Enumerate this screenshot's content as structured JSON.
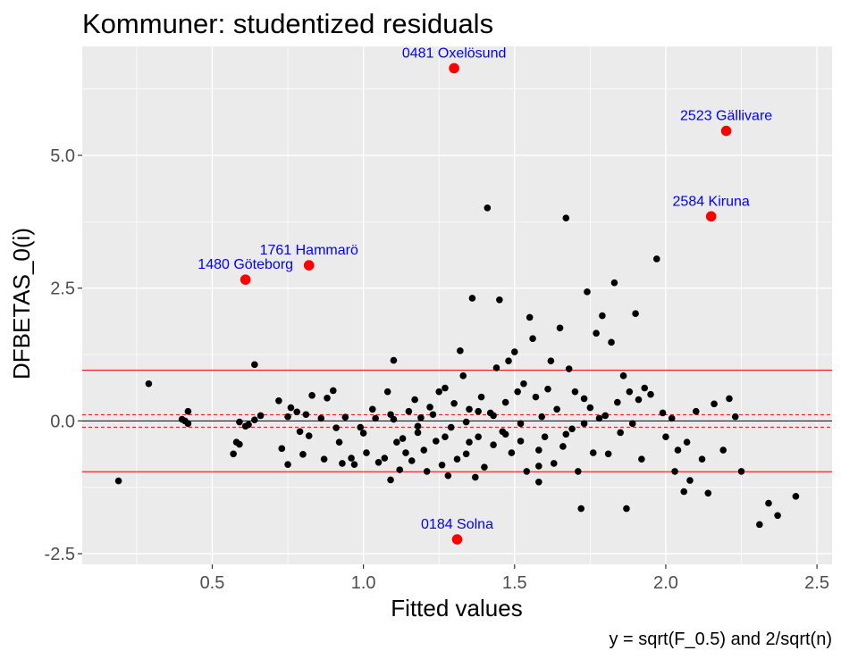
{
  "chart_data": {
    "type": "scatter",
    "title": "Kommuner: studentized residuals",
    "xlabel": "Fitted values",
    "ylabel": "DFBETAS_0(i)",
    "caption": "y = sqrt(F_0.5) and 2/sqrt(n)",
    "xlim": [
      0.07,
      2.55
    ],
    "ylim": [
      -2.7,
      7.05
    ],
    "x_ticks": [
      0.5,
      1.0,
      1.5,
      2.0,
      2.5
    ],
    "x_tick_labels": [
      "0.5",
      "1.0",
      "1.5",
      "2.0",
      "2.5"
    ],
    "y_ticks": [
      -2.5,
      0.0,
      2.5,
      5.0
    ],
    "y_tick_labels": [
      "-2.5",
      "0.0",
      "2.5",
      "5.0"
    ],
    "grid": true,
    "colors": {
      "panel_background": "#ebebeb",
      "grid_line": "#ffffff",
      "point": "#000000",
      "highlight_point": "#ff0000",
      "highlight_label": "#0000ff",
      "reference_line": "#ff0000",
      "zero_line": "#000000"
    },
    "reference_lines": [
      {
        "y": 0.0,
        "color": "#000000",
        "style": "solid"
      },
      {
        "y": 0.955,
        "color": "#ff0000",
        "style": "solid"
      },
      {
        "y": -0.955,
        "color": "#ff0000",
        "style": "solid"
      },
      {
        "y": 0.118,
        "color": "#ff0000",
        "style": "dashed"
      },
      {
        "y": -0.118,
        "color": "#ff0000",
        "style": "dashed"
      }
    ],
    "highlighted": [
      {
        "label": "0481 Oxelösund",
        "x": 1.3,
        "y": 6.64
      },
      {
        "label": "2523 Gällivare",
        "x": 2.2,
        "y": 5.46
      },
      {
        "label": "2584 Kiruna",
        "x": 2.15,
        "y": 3.85
      },
      {
        "label": "1761 Hammarö",
        "x": 0.82,
        "y": 2.93
      },
      {
        "label": "1480 Göteborg",
        "x": 0.61,
        "y": 2.66
      },
      {
        "label": "0184 Solna",
        "x": 1.31,
        "y": -2.23
      }
    ],
    "points": [
      [
        0.19,
        -1.13
      ],
      [
        0.29,
        0.7
      ],
      [
        0.4,
        0.03
      ],
      [
        0.41,
        0.0
      ],
      [
        0.42,
        -0.05
      ],
      [
        0.42,
        0.18
      ],
      [
        0.57,
        -0.62
      ],
      [
        0.58,
        -0.4
      ],
      [
        0.59,
        -0.44
      ],
      [
        0.59,
        -0.02
      ],
      [
        0.61,
        -0.1
      ],
      [
        0.62,
        -0.07
      ],
      [
        0.64,
        1.06
      ],
      [
        0.64,
        0.02
      ],
      [
        0.66,
        0.1
      ],
      [
        0.72,
        0.38
      ],
      [
        0.73,
        -0.52
      ],
      [
        0.75,
        0.08
      ],
      [
        0.75,
        -0.82
      ],
      [
        0.76,
        0.25
      ],
      [
        0.78,
        0.17
      ],
      [
        0.79,
        -0.2
      ],
      [
        0.8,
        -0.63
      ],
      [
        0.81,
        0.12
      ],
      [
        0.82,
        -0.28
      ],
      [
        0.83,
        0.48
      ],
      [
        0.86,
        0.05
      ],
      [
        0.87,
        -0.72
      ],
      [
        0.88,
        0.43
      ],
      [
        0.9,
        0.57
      ],
      [
        0.91,
        -0.13
      ],
      [
        0.92,
        -0.4
      ],
      [
        0.93,
        -0.8
      ],
      [
        0.94,
        0.07
      ],
      [
        0.96,
        -0.7
      ],
      [
        0.97,
        -0.82
      ],
      [
        0.99,
        -0.12
      ],
      [
        1.0,
        -0.23
      ],
      [
        1.01,
        -0.6
      ],
      [
        1.03,
        0.22
      ],
      [
        1.04,
        0.05
      ],
      [
        1.05,
        -0.78
      ],
      [
        1.07,
        -0.7
      ],
      [
        1.08,
        0.55
      ],
      [
        1.09,
        0.12
      ],
      [
        1.09,
        -1.11
      ],
      [
        1.1,
        1.14
      ],
      [
        1.1,
        0.03
      ],
      [
        1.11,
        -0.4
      ],
      [
        1.12,
        -0.92
      ],
      [
        1.13,
        -0.33
      ],
      [
        1.14,
        -0.6
      ],
      [
        1.15,
        0.18
      ],
      [
        1.16,
        -0.75
      ],
      [
        1.17,
        0.4
      ],
      [
        1.18,
        -0.22
      ],
      [
        1.19,
        0.06
      ],
      [
        1.2,
        -0.55
      ],
      [
        1.21,
        -0.95
      ],
      [
        1.22,
        0.26
      ],
      [
        1.23,
        0.12
      ],
      [
        1.24,
        -0.38
      ],
      [
        1.25,
        0.55
      ],
      [
        1.26,
        -0.83
      ],
      [
        1.27,
        0.62
      ],
      [
        1.28,
        -1.03
      ],
      [
        1.29,
        -0.12
      ],
      [
        1.3,
        0.33
      ],
      [
        1.31,
        -0.72
      ],
      [
        1.32,
        1.32
      ],
      [
        1.33,
        0.85
      ],
      [
        1.34,
        -0.02
      ],
      [
        1.34,
        -0.62
      ],
      [
        1.35,
        0.22
      ],
      [
        1.36,
        2.31
      ],
      [
        1.37,
        -1.06
      ],
      [
        1.38,
        0.18
      ],
      [
        1.38,
        -0.3
      ],
      [
        1.39,
        0.45
      ],
      [
        1.4,
        -0.87
      ],
      [
        1.41,
        4.01
      ],
      [
        1.42,
        0.15
      ],
      [
        1.43,
        -0.45
      ],
      [
        1.44,
        1.0
      ],
      [
        1.45,
        2.28
      ],
      [
        1.46,
        -0.2
      ],
      [
        1.47,
        0.35
      ],
      [
        1.48,
        1.13
      ],
      [
        1.49,
        -0.6
      ],
      [
        1.5,
        1.3
      ],
      [
        1.51,
        0.55
      ],
      [
        1.52,
        -0.38
      ],
      [
        1.53,
        0.7
      ],
      [
        1.54,
        -0.95
      ],
      [
        1.55,
        1.95
      ],
      [
        1.56,
        1.55
      ],
      [
        1.57,
        0.45
      ],
      [
        1.58,
        -1.15
      ],
      [
        1.58,
        -0.55
      ],
      [
        1.59,
        0.08
      ],
      [
        1.6,
        -0.3
      ],
      [
        1.61,
        0.6
      ],
      [
        1.62,
        1.13
      ],
      [
        1.63,
        -0.8
      ],
      [
        1.64,
        0.22
      ],
      [
        1.65,
        1.75
      ],
      [
        1.66,
        -0.48
      ],
      [
        1.67,
        3.82
      ],
      [
        1.68,
        0.98
      ],
      [
        1.69,
        -0.15
      ],
      [
        1.7,
        0.55
      ],
      [
        1.71,
        -0.95
      ],
      [
        1.72,
        -1.65
      ],
      [
        1.73,
        0.42
      ],
      [
        1.74,
        2.43
      ],
      [
        1.75,
        0.25
      ],
      [
        1.76,
        -0.6
      ],
      [
        1.77,
        1.65
      ],
      [
        1.78,
        0.05
      ],
      [
        1.79,
        1.98
      ],
      [
        1.8,
        0.1
      ],
      [
        1.81,
        -0.62
      ],
      [
        1.82,
        1.48
      ],
      [
        1.83,
        2.6
      ],
      [
        1.84,
        0.35
      ],
      [
        1.85,
        -0.22
      ],
      [
        1.86,
        0.85
      ],
      [
        1.87,
        -1.65
      ],
      [
        1.88,
        0.55
      ],
      [
        1.89,
        -0.05
      ],
      [
        1.9,
        2.02
      ],
      [
        1.91,
        0.4
      ],
      [
        1.92,
        -0.72
      ],
      [
        1.93,
        0.62
      ],
      [
        1.95,
        0.5
      ],
      [
        1.97,
        3.05
      ],
      [
        1.99,
        0.15
      ],
      [
        2.0,
        -0.3
      ],
      [
        2.02,
        0.05
      ],
      [
        2.03,
        -0.95
      ],
      [
        2.04,
        -0.55
      ],
      [
        2.06,
        -1.33
      ],
      [
        2.07,
        -0.4
      ],
      [
        2.08,
        -1.12
      ],
      [
        2.1,
        0.18
      ],
      [
        2.12,
        -0.72
      ],
      [
        2.14,
        -1.36
      ],
      [
        2.16,
        0.32
      ],
      [
        2.19,
        -0.55
      ],
      [
        2.21,
        0.42
      ],
      [
        2.23,
        0.08
      ],
      [
        2.25,
        -0.95
      ],
      [
        2.31,
        -1.95
      ],
      [
        2.34,
        -1.55
      ],
      [
        2.37,
        -1.78
      ],
      [
        2.43,
        -1.42
      ],
      [
        1.58,
        -0.85
      ],
      [
        1.52,
        -0.05
      ],
      [
        1.47,
        -0.25
      ],
      [
        1.43,
        0.1
      ],
      [
        1.35,
        -0.4
      ],
      [
        1.27,
        -0.3
      ],
      [
        1.18,
        -0.1
      ],
      [
        1.67,
        -0.25
      ],
      [
        1.73,
        -0.05
      ]
    ]
  }
}
